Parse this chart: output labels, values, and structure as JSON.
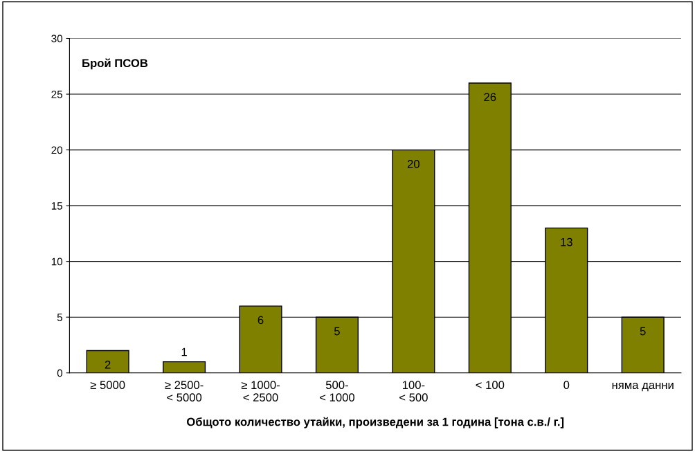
{
  "chart_data": {
    "type": "bar",
    "ylabel": "Брой ПСОВ",
    "xlabel": "Общото количество утайки, произведени за 1 година [тона с.в./ г.]",
    "categories": [
      "≥ 5000",
      "≥ 2500-\n< 5000",
      "≥ 1000-\n< 2500",
      "500-\n< 1000",
      "100-\n< 500",
      "< 100",
      "0",
      "няма данни"
    ],
    "values": [
      2,
      1,
      6,
      5,
      20,
      26,
      13,
      5
    ],
    "color": "#808000",
    "ylim": [
      0,
      30
    ],
    "yticks": [
      0,
      5,
      10,
      15,
      20,
      25,
      30
    ],
    "grid": "y",
    "data_labels": true
  }
}
